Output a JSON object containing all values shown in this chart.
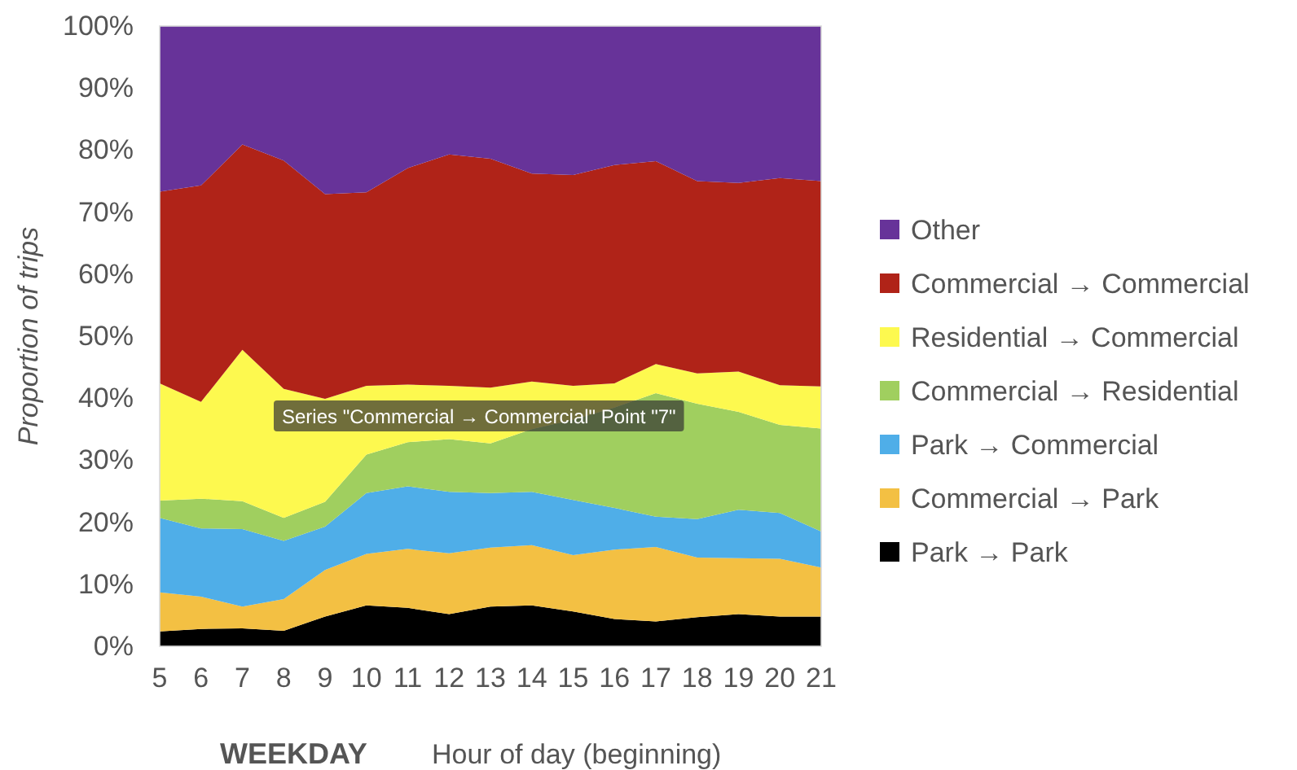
{
  "chart_data": {
    "type": "area",
    "stacked": true,
    "xlabel": "Hour of day (beginning)",
    "ylabel": "Proportion of trips",
    "annotations": [
      "WEEKDAY",
      "Series \"Commercial → Commercial\" Point \"7\""
    ],
    "x": [
      5,
      6,
      7,
      8,
      9,
      10,
      11,
      12,
      13,
      14,
      15,
      16,
      17,
      18,
      19,
      20,
      21
    ],
    "xlim": [
      5,
      21
    ],
    "xticks": [
      5,
      6,
      7,
      8,
      9,
      10,
      11,
      12,
      13,
      14,
      15,
      16,
      17,
      18,
      19,
      20,
      21
    ],
    "ylim": [
      0,
      100
    ],
    "yticks": [
      {
        "value": 0,
        "label": "0%"
      },
      {
        "value": 10,
        "label": "10%"
      },
      {
        "value": 20,
        "label": "20%"
      },
      {
        "value": 30,
        "label": "30%"
      },
      {
        "value": 40,
        "label": "40%"
      },
      {
        "value": 50,
        "label": "50%"
      },
      {
        "value": 60,
        "label": "60%"
      },
      {
        "value": 70,
        "label": "70%"
      },
      {
        "value": 80,
        "label": "80%"
      },
      {
        "value": 90,
        "label": "90%"
      },
      {
        "value": 100,
        "label": "100%"
      }
    ],
    "grid": false,
    "legend": "right",
    "series": [
      {
        "name": "Park → Park",
        "color": "#000000",
        "values": [
          2.4,
          2.8,
          2.9,
          2.5,
          4.8,
          6.6,
          6.2,
          5.2,
          6.4,
          6.6,
          5.6,
          4.4,
          4.0,
          4.7,
          5.2,
          4.8,
          4.8
        ]
      },
      {
        "name": "Commercial → Park",
        "color": "#f3c043",
        "values": [
          6.3,
          5.2,
          3.5,
          5.1,
          7.5,
          8.3,
          9.5,
          9.8,
          9.5,
          9.7,
          9.1,
          11.2,
          12.0,
          9.6,
          9.0,
          9.3,
          7.9
        ]
      },
      {
        "name": "Park → Commercial",
        "color": "#4faee8",
        "values": [
          12.0,
          11.0,
          12.5,
          9.4,
          7.0,
          9.8,
          10.1,
          9.9,
          8.8,
          8.6,
          8.9,
          6.7,
          4.9,
          6.2,
          7.8,
          7.4,
          5.8
        ]
      },
      {
        "name": "Commercial → Residential",
        "color": "#a0cf5f",
        "values": [
          2.8,
          4.8,
          4.5,
          3.7,
          4.0,
          6.2,
          7.1,
          8.5,
          8.0,
          10.1,
          12.9,
          16.2,
          19.9,
          18.6,
          15.8,
          14.2,
          16.6
        ]
      },
      {
        "name": "Residential → Commercial",
        "color": "#fdf94f",
        "values": [
          18.9,
          15.6,
          24.4,
          20.8,
          16.6,
          11.1,
          9.3,
          8.6,
          9.0,
          7.7,
          5.5,
          3.9,
          4.7,
          4.9,
          6.5,
          6.4,
          6.8
        ]
      },
      {
        "name": "Commercial → Commercial",
        "color": "#b02318",
        "values": [
          30.9,
          34.9,
          33.1,
          36.8,
          33.0,
          31.2,
          34.9,
          37.3,
          36.9,
          33.5,
          34.0,
          35.2,
          32.7,
          31.0,
          30.4,
          33.4,
          33.1
        ]
      },
      {
        "name": "Other",
        "color": "#673399",
        "values": [
          26.7,
          25.7,
          19.1,
          21.7,
          27.1,
          26.8,
          22.9,
          20.7,
          21.4,
          23.8,
          24.0,
          22.4,
          21.8,
          25.0,
          25.3,
          24.5,
          25.0
        ]
      }
    ]
  }
}
